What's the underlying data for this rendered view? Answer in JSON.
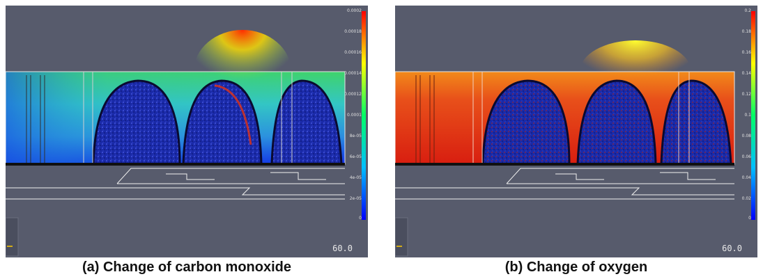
{
  "panel_a": {
    "caption": "(a) Change of carbon monoxide",
    "time": "60.0",
    "colorbar_labels": [
      "0.0002",
      "0.00018",
      "0.00016",
      "0.00014",
      "0.00012",
      "0.0001",
      "8e-05",
      "6e-05",
      "4e-05",
      "2e-05",
      "0"
    ]
  },
  "panel_b": {
    "caption": "(b) Change of oxygen",
    "time": "60.0",
    "colorbar_labels": [
      "0.2",
      "0.18",
      "0.16",
      "0.14",
      "0.12",
      "0.1",
      "0.08",
      "0.06",
      "0.04",
      "0.02",
      "0"
    ]
  },
  "colors": {
    "background": "#575b6c",
    "colormap": [
      "#0000ff",
      "#00bfff",
      "#00ff7f",
      "#ffff00",
      "#ff0000"
    ]
  }
}
